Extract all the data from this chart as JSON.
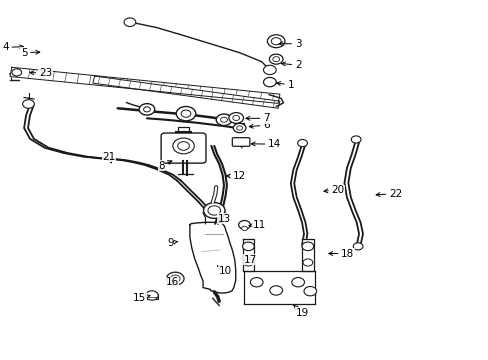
{
  "bg_color": "#ffffff",
  "line_color": "#1a1a1a",
  "figsize": [
    4.89,
    3.6
  ],
  "dpi": 100,
  "labels": {
    "1": [
      0.595,
      0.765,
      0.558,
      0.772
    ],
    "2": [
      0.61,
      0.82,
      0.568,
      0.826
    ],
    "3": [
      0.61,
      0.88,
      0.563,
      0.88
    ],
    "4": [
      0.01,
      0.87,
      0.055,
      0.872
    ],
    "5": [
      0.048,
      0.855,
      0.088,
      0.857
    ],
    "6": [
      0.545,
      0.653,
      0.502,
      0.648
    ],
    "7": [
      0.545,
      0.672,
      0.495,
      0.672
    ],
    "8": [
      0.33,
      0.54,
      0.358,
      0.558
    ],
    "9": [
      0.348,
      0.325,
      0.37,
      0.33
    ],
    "10": [
      0.46,
      0.247,
      0.443,
      0.262
    ],
    "11": [
      0.53,
      0.375,
      0.508,
      0.373
    ],
    "12": [
      0.49,
      0.51,
      0.455,
      0.512
    ],
    "13": [
      0.458,
      0.392,
      0.441,
      0.393
    ],
    "14": [
      0.562,
      0.6,
      0.506,
      0.601
    ],
    "15": [
      0.285,
      0.172,
      0.308,
      0.178
    ],
    "16": [
      0.352,
      0.215,
      0.365,
      0.225
    ],
    "17": [
      0.512,
      0.278,
      0.502,
      0.284
    ],
    "18": [
      0.712,
      0.295,
      0.665,
      0.295
    ],
    "19": [
      0.618,
      0.13,
      0.6,
      0.152
    ],
    "20": [
      0.692,
      0.472,
      0.655,
      0.468
    ],
    "21": [
      0.222,
      0.565,
      0.228,
      0.545
    ],
    "22": [
      0.81,
      0.462,
      0.762,
      0.458
    ],
    "23": [
      0.092,
      0.798,
      0.052,
      0.8
    ]
  }
}
